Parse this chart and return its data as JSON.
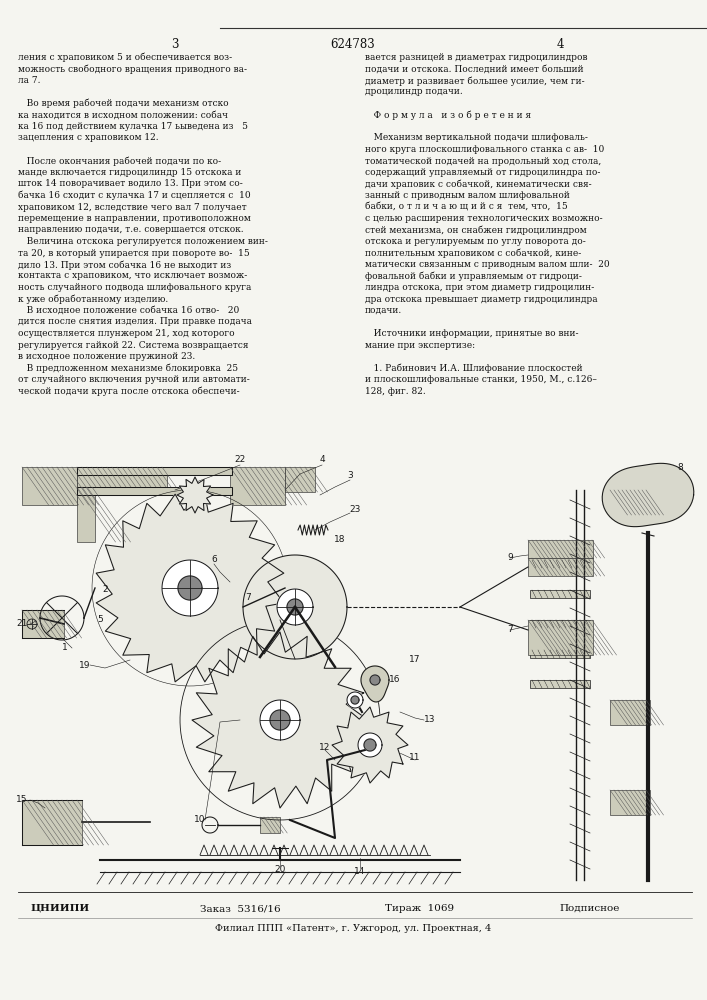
{
  "bg_color": "#f5f5f0",
  "text_color": "#111111",
  "header": {
    "left_num": "3",
    "center_num": "624783",
    "right_num": "4"
  },
  "left_col_lines": [
    "ления с храповиком 5 и обеспечивается воз-",
    "можность свободного вращения приводного ва-",
    "ла 7.",
    "",
    "   Во время рабочей подачи механизм отско",
    "ка находится в исходном положении: собач",
    "ка 16 под действием кулачка 17 ьыведена из   5",
    "зацепления с храповиком 12.",
    "",
    "   После окончания рабочей подачи по ко-",
    "манде включается гидроцилиндр 15 отскока и",
    "шток 14 поворачивает водило 13. При этом со-",
    "бачка 16 сходит с кулачка 17 и сцепляется с  10",
    "храповиком 12, вследствие чего вал 7 получает",
    "перемещение в направлении, противоположном",
    "направлению подачи, т.е. совершается отскок.",
    "   Величина отскока регулируется положением вин-",
    "та 20, в который упирается при повороте во-  15",
    "дило 13. При этом собачка 16 не выходит из",
    "контакта с храповиком, что исключает возмож-",
    "ность случайного подвода шлифовального круга",
    "к уже обработанному изделию.",
    "   В исходное положение собачка 16 отво-   20",
    "дится после снятия изделия. При правке подача",
    "осуществляется плунжером 21, ход которого",
    "регулируется гайкой 22. Система возвращается",
    "в исходное положение пружиной 23.",
    "   В предложенном механизме блокировка  25",
    "от случайного включения ручной или автомати-",
    "ческой подачи круга после отскока обеспечи-"
  ],
  "right_col_lines": [
    "вается разницей в диаметрах гидроцилиндров",
    "подачи и отскока. Последний имеет больший",
    "диаметр и развивает большее усилие, чем ги-",
    "дроцилиндр подачи.",
    "",
    "   Ф о р м у л а   и з о б р е т е н и я",
    "",
    "   Механизм вертикальной подачи шлифоваль-",
    "ного круга плоскошлифовального станка с ав-  10",
    "томатической подачей на продольный ход стола,",
    "содержащий управляемый от гидроцилиндра по-",
    "дачи храповик с собачкой, кинематически свя-",
    "занный с приводным валом шлифовальной",
    "бабки, о т л и ч а ю щ и й с я  тем, что,  15",
    "с целью расширения технологических возможно-",
    "стей механизма, он снабжен гидроцилиндром",
    "отскока и регулируемым по углу поворота до-",
    "полнительным храповиком с собачкой, кине-",
    "матически связанным с приводным валом шли-  20",
    "фовальной бабки и управляемым от гидроци-",
    "линдра отскока, при этом диаметр гидроцилин-",
    "дра отскока превышает диаметр гидроцилиндра",
    "подачи.",
    "",
    "   Источники информации, принятые во вни-",
    "мание при экспертизе:",
    "",
    "   1. Рабинович И.А. Шлифование плоскостей",
    "и плоскошлифовальные станки, 1950, М., с.126–",
    "128, фиг. 82."
  ],
  "footer": {
    "org": "ЦНИИПИ",
    "order_label": "Заказ",
    "order_val": "5316/16",
    "tirage_label": "Тираж",
    "tirage_val": "1069",
    "subscription": "Подписное",
    "affiliate": "Филиал ППП «Патент», г. Ужгород, ул. Проектная, 4"
  }
}
